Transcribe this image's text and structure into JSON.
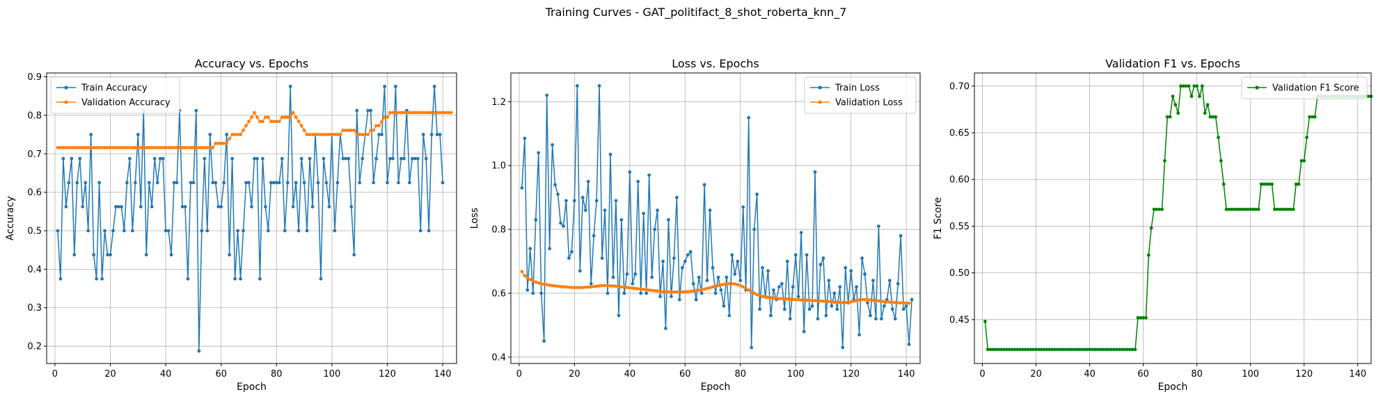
{
  "figure": {
    "suptitle": "Training Curves - GAT_politifact_8_shot_roberta_knn_7"
  },
  "chart_data": [
    {
      "type": "line",
      "title": "Accuracy vs. Epochs",
      "xlabel": "Epoch",
      "ylabel": "Accuracy",
      "xlim": [
        -3,
        145
      ],
      "ylim": [
        0.155,
        0.91
      ],
      "xticks": [
        0,
        20,
        40,
        60,
        80,
        100,
        120,
        140
      ],
      "yticks": [
        0.2,
        0.3,
        0.4,
        0.5,
        0.6,
        0.7,
        0.8,
        0.9
      ],
      "tick_decimals": 1,
      "grid": true,
      "legend": "upper-left",
      "series": [
        {
          "name": "Train Accuracy",
          "color": "#1f77b4",
          "x_start": 1,
          "values": [
            0.5,
            0.375,
            0.6875,
            0.5625,
            0.625,
            0.6875,
            0.4375,
            0.625,
            0.6875,
            0.5625,
            0.625,
            0.5,
            0.75,
            0.4375,
            0.375,
            0.625,
            0.375,
            0.5,
            0.4375,
            0.4375,
            0.5,
            0.5625,
            0.5625,
            0.5625,
            0.5,
            0.625,
            0.6875,
            0.5,
            0.625,
            0.75,
            0.5625,
            0.8125,
            0.4375,
            0.625,
            0.5625,
            0.6875,
            0.625,
            0.6875,
            0.6875,
            0.5,
            0.5,
            0.4375,
            0.625,
            0.625,
            0.8125,
            0.5625,
            0.5625,
            0.375,
            0.625,
            0.625,
            0.8125,
            0.1875,
            0.5,
            0.6875,
            0.5,
            0.75,
            0.625,
            0.625,
            0.5625,
            0.5625,
            0.625,
            0.75,
            0.4375,
            0.6875,
            0.375,
            0.5,
            0.375,
            0.5,
            0.625,
            0.625,
            0.5625,
            0.6875,
            0.6875,
            0.375,
            0.6875,
            0.5625,
            0.5,
            0.625,
            0.625,
            0.625,
            0.625,
            0.6875,
            0.5,
            0.625,
            0.875,
            0.5625,
            0.625,
            0.5,
            0.6875,
            0.625,
            0.5,
            0.6875,
            0.5625,
            0.75,
            0.625,
            0.375,
            0.6875,
            0.625,
            0.5625,
            0.75,
            0.5,
            0.625,
            0.75,
            0.6875,
            0.6875,
            0.6875,
            0.5625,
            0.4375,
            0.8125,
            0.625,
            0.6875,
            0.75,
            0.8125,
            0.8125,
            0.625,
            0.6875,
            0.75,
            0.75,
            0.875,
            0.625,
            0.6875,
            0.6875,
            0.875,
            0.625,
            0.6875,
            0.6875,
            0.8125,
            0.625,
            0.6875,
            0.6875,
            0.6875,
            0.5,
            0.75,
            0.6875,
            0.5,
            0.75,
            0.875,
            0.75,
            0.75,
            0.625
          ]
        },
        {
          "name": "Validation Accuracy",
          "color": "#ff7f0e",
          "x_start": 1,
          "values": [
            0.716,
            0.716,
            0.716,
            0.716,
            0.716,
            0.716,
            0.716,
            0.716,
            0.716,
            0.716,
            0.716,
            0.716,
            0.716,
            0.716,
            0.716,
            0.716,
            0.716,
            0.716,
            0.716,
            0.716,
            0.716,
            0.716,
            0.716,
            0.716,
            0.716,
            0.716,
            0.716,
            0.716,
            0.716,
            0.716,
            0.716,
            0.716,
            0.716,
            0.716,
            0.716,
            0.716,
            0.716,
            0.716,
            0.716,
            0.716,
            0.716,
            0.716,
            0.716,
            0.716,
            0.716,
            0.716,
            0.716,
            0.716,
            0.716,
            0.716,
            0.716,
            0.716,
            0.716,
            0.716,
            0.716,
            0.716,
            0.716,
            0.727,
            0.727,
            0.727,
            0.727,
            0.727,
            0.739,
            0.75,
            0.75,
            0.75,
            0.75,
            0.761,
            0.773,
            0.784,
            0.795,
            0.807,
            0.795,
            0.784,
            0.784,
            0.795,
            0.795,
            0.784,
            0.784,
            0.784,
            0.784,
            0.795,
            0.795,
            0.795,
            0.795,
            0.807,
            0.795,
            0.784,
            0.773,
            0.761,
            0.75,
            0.75,
            0.75,
            0.75,
            0.75,
            0.75,
            0.75,
            0.75,
            0.75,
            0.75,
            0.75,
            0.75,
            0.75,
            0.761,
            0.761,
            0.761,
            0.761,
            0.761,
            0.75,
            0.75,
            0.75,
            0.75,
            0.75,
            0.761,
            0.761,
            0.773,
            0.773,
            0.784,
            0.795,
            0.795,
            0.807,
            0.807,
            0.807,
            0.807,
            0.807,
            0.807,
            0.807,
            0.807,
            0.807,
            0.807,
            0.807,
            0.807,
            0.807,
            0.807,
            0.807,
            0.807,
            0.807,
            0.807,
            0.807,
            0.807,
            0.807,
            0.807,
            0.807
          ]
        }
      ]
    },
    {
      "type": "line",
      "title": "Loss vs. Epochs",
      "xlabel": "Epoch",
      "ylabel": "Loss",
      "xlim": [
        -3,
        145
      ],
      "ylim": [
        0.38,
        1.29
      ],
      "xticks": [
        0,
        20,
        40,
        60,
        80,
        100,
        120,
        140
      ],
      "yticks": [
        0.4,
        0.6,
        0.8,
        1.0,
        1.2
      ],
      "tick_decimals": 1,
      "grid": true,
      "legend": "upper-right",
      "series": [
        {
          "name": "Train Loss",
          "color": "#1f77b4",
          "x_start": 1,
          "values": [
            0.93,
            1.085,
            0.61,
            0.74,
            0.6,
            0.83,
            1.04,
            0.6,
            0.45,
            1.22,
            0.74,
            1.065,
            0.94,
            0.91,
            0.82,
            0.81,
            0.89,
            0.71,
            0.73,
            0.89,
            1.25,
            0.67,
            0.9,
            0.86,
            0.95,
            0.63,
            0.78,
            0.89,
            1.25,
            0.71,
            0.86,
            0.6,
            1.035,
            0.65,
            0.89,
            0.53,
            0.83,
            0.6,
            0.66,
            0.98,
            0.63,
            0.66,
            0.95,
            0.6,
            0.85,
            0.6,
            0.97,
            0.65,
            0.8,
            0.86,
            0.59,
            0.7,
            0.49,
            0.83,
            0.59,
            0.71,
            0.9,
            0.58,
            0.68,
            0.7,
            0.72,
            0.73,
            0.63,
            0.58,
            0.65,
            0.6,
            0.94,
            0.64,
            0.86,
            0.68,
            0.6,
            0.65,
            0.61,
            0.56,
            0.65,
            0.53,
            0.72,
            0.66,
            0.7,
            0.64,
            0.87,
            0.61,
            1.15,
            0.43,
            0.8,
            0.91,
            0.55,
            0.68,
            0.59,
            0.67,
            0.53,
            0.61,
            0.58,
            0.62,
            0.63,
            0.55,
            0.7,
            0.52,
            0.62,
            0.72,
            0.59,
            0.79,
            0.48,
            0.72,
            0.55,
            0.56,
            0.98,
            0.52,
            0.69,
            0.71,
            0.53,
            0.64,
            0.56,
            0.6,
            0.55,
            0.62,
            0.43,
            0.68,
            0.57,
            0.67,
            0.58,
            0.62,
            0.47,
            0.71,
            0.66,
            0.57,
            0.53,
            0.64,
            0.52,
            0.81,
            0.52,
            0.56,
            0.58,
            0.64,
            0.55,
            0.52,
            0.63,
            0.78,
            0.55,
            0.56,
            0.44,
            0.58
          ]
        },
        {
          "name": "Validation Loss",
          "color": "#ff7f0e",
          "x_start": 1,
          "values": [
            0.668,
            0.655,
            0.648,
            0.643,
            0.639,
            0.635,
            0.632,
            0.63,
            0.628,
            0.627,
            0.625,
            0.624,
            0.623,
            0.622,
            0.621,
            0.62,
            0.62,
            0.619,
            0.618,
            0.618,
            0.618,
            0.618,
            0.618,
            0.619,
            0.619,
            0.62,
            0.621,
            0.622,
            0.623,
            0.624,
            0.624,
            0.624,
            0.623,
            0.623,
            0.622,
            0.621,
            0.62,
            0.619,
            0.618,
            0.617,
            0.616,
            0.615,
            0.614,
            0.613,
            0.612,
            0.611,
            0.61,
            0.609,
            0.608,
            0.607,
            0.606,
            0.605,
            0.605,
            0.604,
            0.604,
            0.604,
            0.604,
            0.604,
            0.604,
            0.605,
            0.605,
            0.606,
            0.607,
            0.608,
            0.609,
            0.611,
            0.613,
            0.615,
            0.617,
            0.62,
            0.622,
            0.624,
            0.626,
            0.628,
            0.629,
            0.63,
            0.63,
            0.629,
            0.627,
            0.624,
            0.62,
            0.615,
            0.61,
            0.605,
            0.6,
            0.596,
            0.593,
            0.59,
            0.588,
            0.587,
            0.586,
            0.585,
            0.584,
            0.583,
            0.583,
            0.582,
            0.582,
            0.581,
            0.581,
            0.58,
            0.58,
            0.579,
            0.579,
            0.578,
            0.578,
            0.577,
            0.577,
            0.576,
            0.576,
            0.575,
            0.575,
            0.574,
            0.573,
            0.572,
            0.571,
            0.571,
            0.571,
            0.571,
            0.572,
            0.573,
            0.575,
            0.577,
            0.579,
            0.58,
            0.58,
            0.58,
            0.579,
            0.578,
            0.577,
            0.576,
            0.575,
            0.574,
            0.573,
            0.572,
            0.571,
            0.571,
            0.57,
            0.57,
            0.57,
            0.569,
            0.569
          ]
        }
      ]
    },
    {
      "type": "line",
      "title": "Validation F1 vs. Epochs",
      "xlabel": "Epoch",
      "ylabel": "F1 Score",
      "xlim": [
        -3,
        145
      ],
      "ylim": [
        0.403,
        0.714
      ],
      "xticks": [
        0,
        20,
        40,
        60,
        80,
        100,
        120,
        140
      ],
      "yticks": [
        0.45,
        0.5,
        0.55,
        0.6,
        0.65,
        0.7
      ],
      "tick_decimals": 2,
      "grid": true,
      "legend": "upper-right",
      "series": [
        {
          "name": "Validation F1 Score",
          "color": "#008000",
          "x_start": 1,
          "values": [
            0.448,
            0.418,
            0.418,
            0.418,
            0.418,
            0.418,
            0.418,
            0.418,
            0.418,
            0.418,
            0.418,
            0.418,
            0.418,
            0.418,
            0.418,
            0.418,
            0.418,
            0.418,
            0.418,
            0.418,
            0.418,
            0.418,
            0.418,
            0.418,
            0.418,
            0.418,
            0.418,
            0.418,
            0.418,
            0.418,
            0.418,
            0.418,
            0.418,
            0.418,
            0.418,
            0.418,
            0.418,
            0.418,
            0.418,
            0.418,
            0.418,
            0.418,
            0.418,
            0.418,
            0.418,
            0.418,
            0.418,
            0.418,
            0.418,
            0.418,
            0.418,
            0.418,
            0.418,
            0.418,
            0.418,
            0.418,
            0.418,
            0.452,
            0.452,
            0.452,
            0.452,
            0.519,
            0.548,
            0.568,
            0.568,
            0.568,
            0.568,
            0.62,
            0.667,
            0.667,
            0.689,
            0.68,
            0.671,
            0.7,
            0.7,
            0.7,
            0.7,
            0.689,
            0.7,
            0.7,
            0.689,
            0.7,
            0.671,
            0.68,
            0.667,
            0.667,
            0.667,
            0.645,
            0.62,
            0.595,
            0.568,
            0.568,
            0.568,
            0.568,
            0.568,
            0.568,
            0.568,
            0.568,
            0.568,
            0.568,
            0.568,
            0.568,
            0.568,
            0.595,
            0.595,
            0.595,
            0.595,
            0.595,
            0.568,
            0.568,
            0.568,
            0.568,
            0.568,
            0.568,
            0.568,
            0.568,
            0.595,
            0.595,
            0.62,
            0.62,
            0.645,
            0.667,
            0.667,
            0.667,
            0.689,
            0.689,
            0.689,
            0.689,
            0.689,
            0.689,
            0.689,
            0.689,
            0.689,
            0.689,
            0.689,
            0.689,
            0.689,
            0.689,
            0.689,
            0.689,
            0.689,
            0.689,
            0.689,
            0.689,
            0.689
          ]
        }
      ]
    }
  ]
}
